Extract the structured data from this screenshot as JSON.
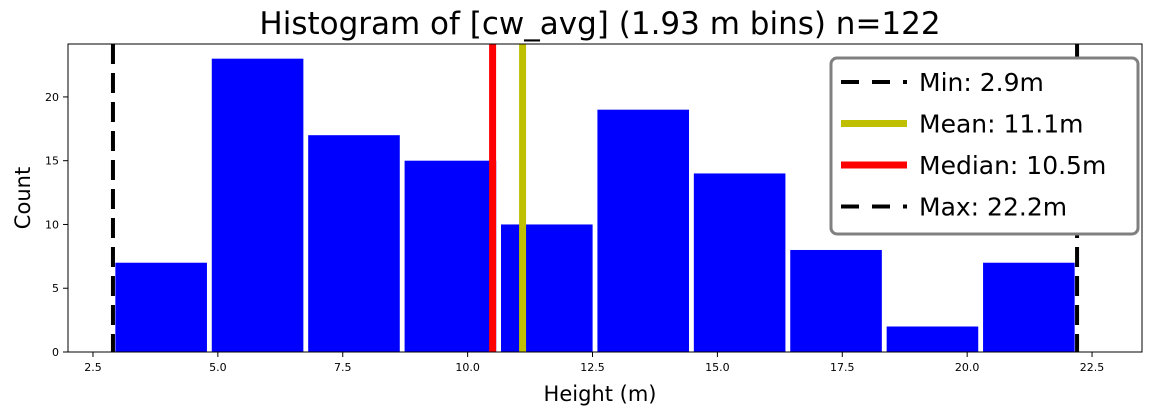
{
  "chart_data": {
    "type": "bar",
    "title": "Histogram of [cw_avg] (1.93 m bins) n=122",
    "xlabel": "Height (m)",
    "ylabel": "Count",
    "xlim": [
      2.0,
      23.5
    ],
    "ylim": [
      0,
      24.15
    ],
    "xticks": [
      2.5,
      5.0,
      7.5,
      10.0,
      12.5,
      15.0,
      17.5,
      20.0,
      22.5
    ],
    "xtick_labels": [
      "2.5",
      "5.0",
      "7.5",
      "10.0",
      "12.5",
      "15.0",
      "17.5",
      "20.0",
      "22.5"
    ],
    "yticks": [
      0,
      5,
      10,
      15,
      20
    ],
    "ytick_labels": [
      "0",
      "5",
      "10",
      "15",
      "20"
    ],
    "bin_width": 1.93,
    "bins": [
      {
        "start": 2.9,
        "end": 4.83,
        "count": 7
      },
      {
        "start": 4.83,
        "end": 6.76,
        "count": 23
      },
      {
        "start": 6.76,
        "end": 8.69,
        "count": 17
      },
      {
        "start": 8.69,
        "end": 10.62,
        "count": 15
      },
      {
        "start": 10.62,
        "end": 12.55,
        "count": 10
      },
      {
        "start": 12.55,
        "end": 14.48,
        "count": 19
      },
      {
        "start": 14.48,
        "end": 16.41,
        "count": 14
      },
      {
        "start": 16.41,
        "end": 18.34,
        "count": 8
      },
      {
        "start": 18.34,
        "end": 20.27,
        "count": 2
      },
      {
        "start": 20.27,
        "end": 22.2,
        "count": 7
      }
    ],
    "bar_color": "#0000ff",
    "vlines": [
      {
        "label": "Min: 2.9m",
        "x": 2.9,
        "color": "#000000",
        "style": "dashed"
      },
      {
        "label": "Mean: 11.1m",
        "x": 11.1,
        "color": "#bfbf00",
        "style": "solid"
      },
      {
        "label": "Median: 10.5m",
        "x": 10.5,
        "color": "#ff0000",
        "style": "solid"
      },
      {
        "label": "Max: 22.2m",
        "x": 22.2,
        "color": "#000000",
        "style": "dashed"
      }
    ],
    "legend_position": "top-right",
    "grid": false
  }
}
